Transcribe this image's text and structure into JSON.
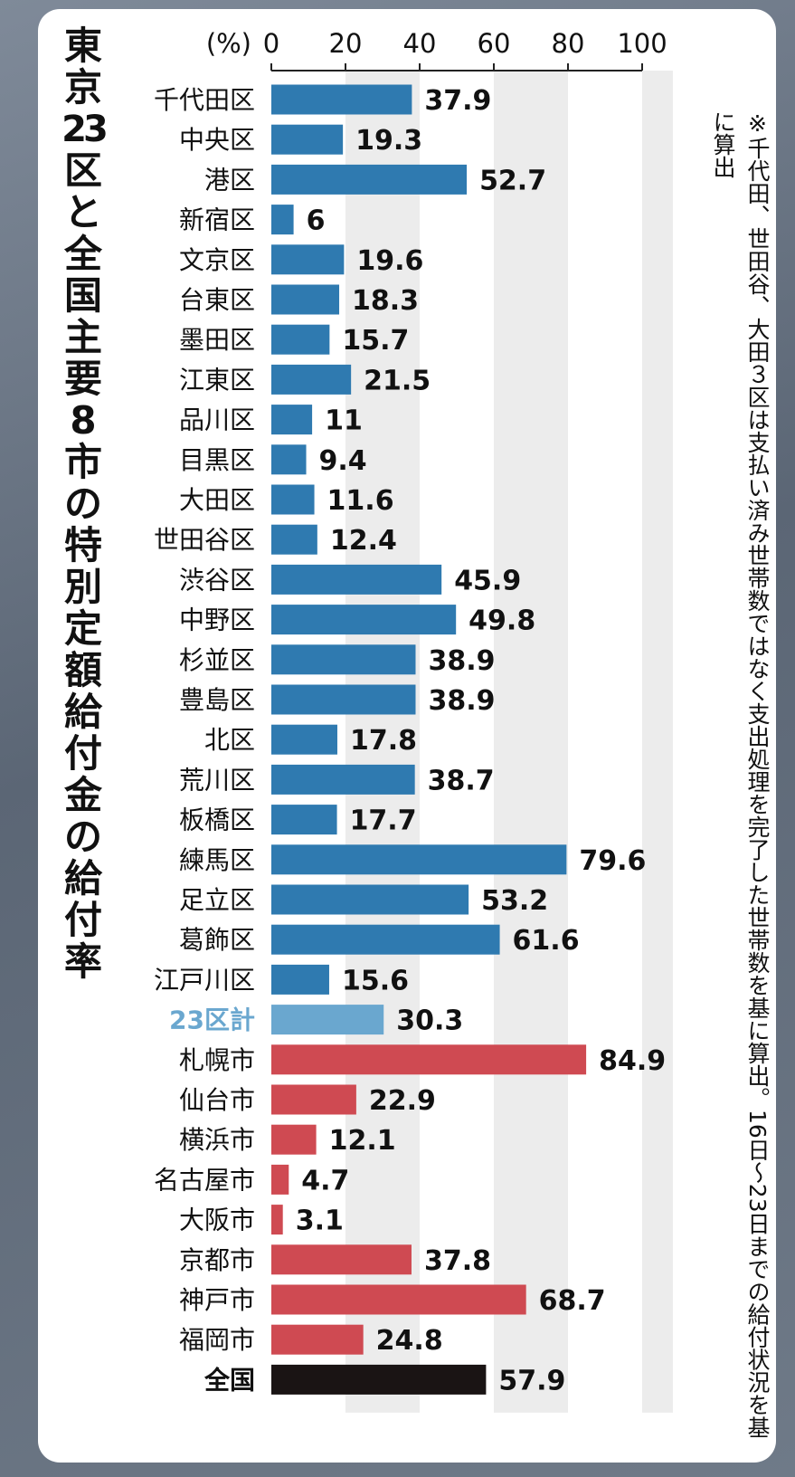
{
  "title": "東京23区と全国主要8市の特別定額給付金の給付率",
  "note": "※千代田、世田谷、大田３区は支払い済み世帯数ではなく支出処理を完了した世帯数を基に算出。16日～23日までの給付状況を基に算出",
  "chart_data": {
    "type": "bar",
    "orientation": "horizontal",
    "unit": "(%)",
    "xlim": [
      0,
      100
    ],
    "ticks": [
      0,
      20,
      40,
      60,
      80,
      100
    ],
    "categories": [
      "千代田区",
      "中央区",
      "港区",
      "新宿区",
      "文京区",
      "台東区",
      "墨田区",
      "江東区",
      "品川区",
      "目黒区",
      "大田区",
      "世田谷区",
      "渋谷区",
      "中野区",
      "杉並区",
      "豊島区",
      "北区",
      "荒川区",
      "板橋区",
      "練馬区",
      "足立区",
      "葛飾区",
      "江戸川区",
      "23区計",
      "札幌市",
      "仙台市",
      "横浜市",
      "名古屋市",
      "大阪市",
      "京都市",
      "神戸市",
      "福岡市",
      "全国"
    ],
    "values": [
      37.9,
      19.3,
      52.7,
      6,
      19.6,
      18.3,
      15.7,
      21.5,
      11,
      9.4,
      11.6,
      12.4,
      45.9,
      49.8,
      38.9,
      38.9,
      17.8,
      38.7,
      17.7,
      79.6,
      53.2,
      61.6,
      15.6,
      30.3,
      84.9,
      22.9,
      12.1,
      4.7,
      3.1,
      37.8,
      68.7,
      24.8,
      57.9
    ],
    "value_labels": [
      "37.9",
      "19.3",
      "52.7",
      "6",
      "19.6",
      "18.3",
      "15.7",
      "21.5",
      "11",
      "9.4",
      "11.6",
      "12.4",
      "45.9",
      "49.8",
      "38.9",
      "38.9",
      "17.8",
      "38.7",
      "17.7",
      "79.6",
      "53.2",
      "61.6",
      "15.6",
      "30.3",
      "84.9",
      "22.9",
      "12.1",
      "4.7",
      "3.1",
      "37.8",
      "68.7",
      "24.8",
      "57.9"
    ],
    "groups": [
      "ward",
      "ward",
      "ward",
      "ward",
      "ward",
      "ward",
      "ward",
      "ward",
      "ward",
      "ward",
      "ward",
      "ward",
      "ward",
      "ward",
      "ward",
      "ward",
      "ward",
      "ward",
      "ward",
      "ward",
      "ward",
      "ward",
      "ward",
      "total",
      "city",
      "city",
      "city",
      "city",
      "city",
      "city",
      "city",
      "city",
      "national"
    ],
    "colors": {
      "ward": "#2f7ab0",
      "total": "#6aa7cf",
      "city": "#cf4a52",
      "national": "#1a1414",
      "grid_band": "#ececec"
    },
    "grid_bands": true
  }
}
